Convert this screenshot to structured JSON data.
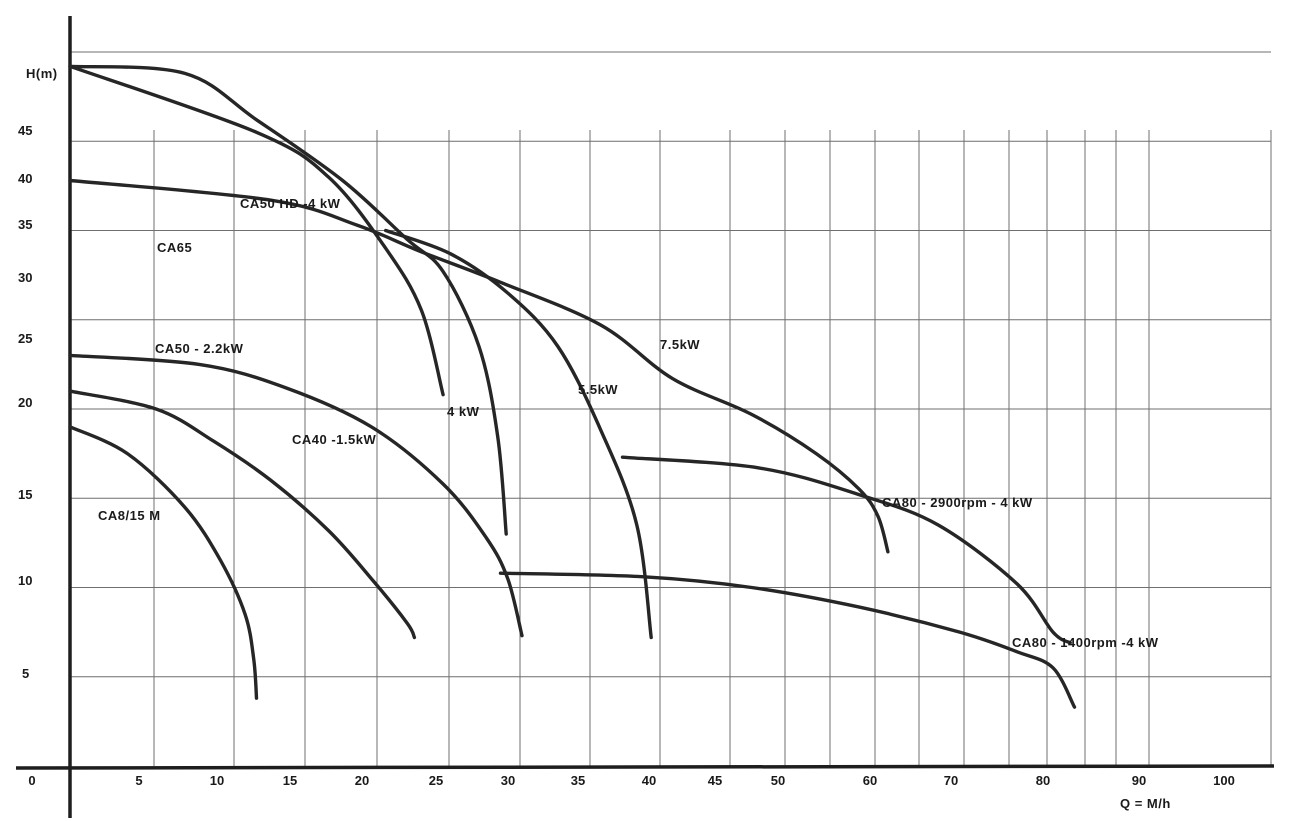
{
  "chart_data": {
    "type": "line",
    "ylabel": "H(m)",
    "xlabel": "Q = M/h",
    "ylim": [
      0,
      45
    ],
    "grid": true,
    "x_ticks": [
      "0",
      "5",
      "10",
      "15",
      "20",
      "25",
      "30",
      "35",
      "40",
      "45",
      "50",
      "60",
      "70",
      "80",
      "90",
      "100"
    ],
    "y_ticks": [
      "5",
      "10",
      "15",
      "20",
      "25",
      "30",
      "35",
      "40",
      "45"
    ],
    "colors": {
      "curve": "#262626",
      "grid": "#6f6f6f",
      "text": "#1a1a1a"
    },
    "series": [
      {
        "name": "CA8/15 M",
        "x": [
          0,
          4,
          8,
          10.5,
          12.2,
          12.8,
          13
        ],
        "y": [
          19,
          17.5,
          14.5,
          11.5,
          8.5,
          6,
          3.8
        ]
      },
      {
        "name": "CA40 -1.5kW",
        "x": [
          0,
          6,
          10,
          14,
          18,
          21,
          23.5,
          24
        ],
        "y": [
          21,
          20,
          18.2,
          16,
          13.2,
          10.5,
          8,
          7.2
        ]
      },
      {
        "name": "CA50 - 2.2kW",
        "x": [
          0,
          9,
          15,
          21,
          26,
          29,
          30.5,
          31.5
        ],
        "y": [
          23,
          22.5,
          21.2,
          19,
          15.8,
          12.8,
          10.5,
          7.3
        ]
      },
      {
        "name": "4 kW",
        "x": [
          0,
          13,
          18,
          22,
          24.5,
          26
        ],
        "y": [
          39.2,
          35.5,
          33,
          29,
          25.5,
          20.8
        ]
      },
      {
        "name": "CA50 HD -4 kW",
        "x": [
          0,
          8,
          13,
          19,
          23.5,
          26,
          28.5,
          29.8,
          30.4
        ],
        "y": [
          39.2,
          38.8,
          36.2,
          32.8,
          29.5,
          27.7,
          23.5,
          18.5,
          13
        ]
      },
      {
        "name": "5.5kW",
        "x": [
          22,
          26.5,
          30.5,
          34,
          37,
          39.5,
          40.5
        ],
        "y": [
          30,
          28.7,
          26.5,
          23.5,
          18.8,
          13.5,
          7.2
        ]
      },
      {
        "name": "CA65",
        "x": [
          0,
          14,
          20,
          24.5,
          30,
          37,
          42,
          47.5,
          52,
          55,
          56.3,
          57
        ],
        "y": [
          32.8,
          31.7,
          30.3,
          28.8,
          27.1,
          24.7,
          21.7,
          19.7,
          17.5,
          15.5,
          14,
          12
        ]
      },
      {
        "name": "7.5kW",
        "x": [],
        "y": []
      },
      {
        "name": "CA80 - 2900rpm - 4 kW",
        "x": [
          38.5,
          48,
          55,
          60.5,
          66,
          68.5,
          69.7
        ],
        "y": [
          17.3,
          16.7,
          15.2,
          13.5,
          10.2,
          7.5,
          6.9
        ]
      },
      {
        "name": "CA80 - 1400rpm -4 kW",
        "x": [
          30,
          40,
          47.5,
          55,
          62,
          66,
          68.5,
          70
        ],
        "y": [
          10.8,
          10.6,
          10,
          8.9,
          7.5,
          6.4,
          5.5,
          3.3
        ]
      }
    ]
  }
}
